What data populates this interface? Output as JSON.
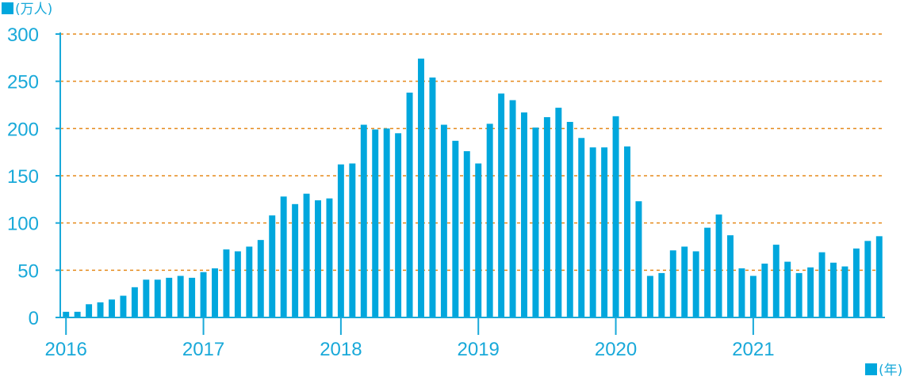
{
  "chart_data": {
    "type": "bar",
    "ylabel": "(万人)",
    "xlabel": "(年)",
    "ylim": [
      0,
      300
    ],
    "yticks": [
      0,
      50,
      100,
      150,
      200,
      250,
      300
    ],
    "grid": "horizontal-dashed",
    "bar_color": "#00a7dd",
    "grid_color": "#e58a1b",
    "axis_color": "#19a9d9",
    "start": "2016-01",
    "frequency": "monthly",
    "year_ticks": [
      "2016",
      "2017",
      "2018",
      "2019",
      "2020",
      "2021"
    ],
    "values": [
      6,
      6,
      14,
      16,
      19,
      23,
      32,
      40,
      40,
      42,
      44,
      42,
      48,
      52,
      72,
      70,
      75,
      82,
      108,
      128,
      120,
      131,
      124,
      126,
      162,
      163,
      204,
      199,
      200,
      195,
      238,
      274,
      254,
      204,
      187,
      176,
      163,
      205,
      237,
      230,
      217,
      201,
      212,
      222,
      207,
      190,
      180,
      180,
      213,
      181,
      123,
      44,
      47,
      71,
      75,
      70,
      95,
      109,
      87,
      52,
      44,
      57,
      77,
      59,
      47,
      53,
      69,
      58,
      54,
      73,
      81,
      86
    ]
  }
}
